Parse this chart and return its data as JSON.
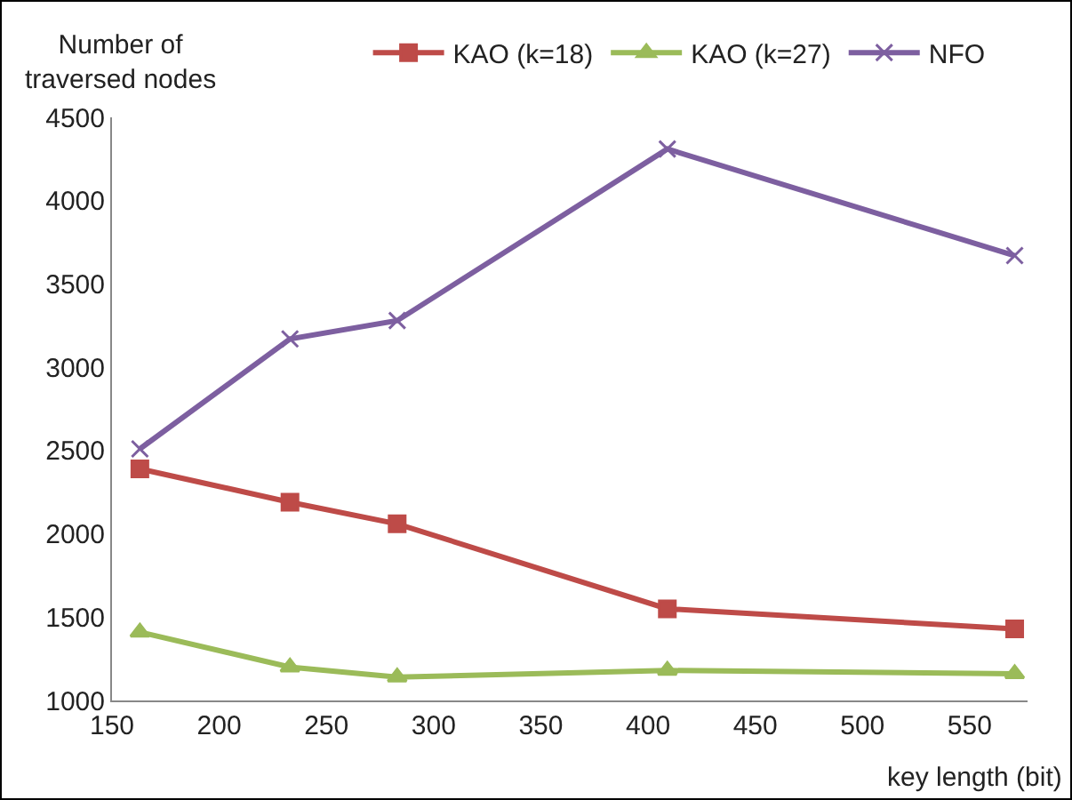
{
  "chart_data": {
    "type": "line",
    "xlabel": "key length (bit)",
    "ylabel": "Number of traversed nodes",
    "x": [
      163,
      233,
      283,
      409,
      571
    ],
    "series": [
      {
        "name": "KAO (k=18)",
        "color": "#be4b48",
        "marker": "square",
        "values": [
          2390,
          2190,
          2060,
          1550,
          1430
        ]
      },
      {
        "name": "KAO (k=27)",
        "color": "#9bbb59",
        "marker": "triangle",
        "values": [
          1410,
          1200,
          1140,
          1180,
          1160
        ]
      },
      {
        "name": "NFO",
        "color": "#7d5fa0",
        "marker": "cross",
        "values": [
          2510,
          3170,
          3280,
          4310,
          3670
        ]
      }
    ],
    "xlim": [
      150,
      577
    ],
    "xticks": [
      150,
      200,
      250,
      300,
      350,
      400,
      450,
      500,
      550
    ],
    "ylim": [
      1000,
      4500
    ],
    "yticks": [
      1000,
      1500,
      2000,
      2500,
      3000,
      3500,
      4000,
      4500
    ],
    "grid": false,
    "legend": "top",
    "line_style": "solid"
  }
}
